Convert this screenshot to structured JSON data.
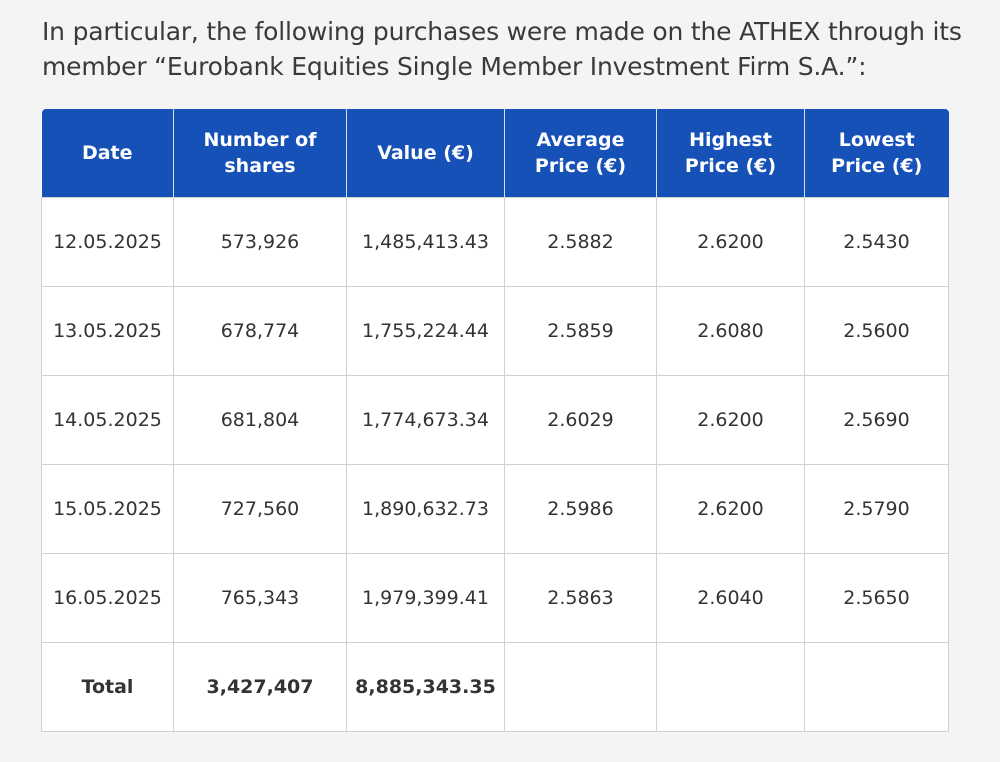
{
  "intro": {
    "line1": "In particular, the following purchases were made on the ATHEX through its",
    "line2": "member “Eurobank Equities Single Member Investment Firm S.A.”:"
  },
  "table": {
    "headers": {
      "date": "Date",
      "shares_l1": "Number of",
      "shares_l2": "shares",
      "value": "Value (€)",
      "avg_l1": "Average",
      "avg_l2": "Price (€)",
      "high_l1": "Highest",
      "high_l2": "Price (€)",
      "low_l1": "Lowest",
      "low_l2": "Price (€)"
    },
    "rows": [
      {
        "date": "12.05.2025",
        "shares": "573,926",
        "value": "1,485,413.43",
        "avg": "2.5882",
        "high": "2.6200",
        "low": "2.5430"
      },
      {
        "date": "13.05.2025",
        "shares": "678,774",
        "value": "1,755,224.44",
        "avg": "2.5859",
        "high": "2.6080",
        "low": "2.5600"
      },
      {
        "date": "14.05.2025",
        "shares": "681,804",
        "value": "1,774,673.34",
        "avg": "2.6029",
        "high": "2.6200",
        "low": "2.5690"
      },
      {
        "date": "15.05.2025",
        "shares": "727,560",
        "value": "1,890,632.73",
        "avg": "2.5986",
        "high": "2.6200",
        "low": "2.5790"
      },
      {
        "date": "16.05.2025",
        "shares": "765,343",
        "value": "1,979,399.41",
        "avg": "2.5863",
        "high": "2.6040",
        "low": "2.5650"
      }
    ],
    "total": {
      "label": "Total",
      "shares": "3,427,407",
      "value": "8,885,343.35"
    }
  },
  "colors": {
    "header_bg": "#1651b8",
    "header_text": "#ffffff",
    "page_bg": "#f4f4f5"
  }
}
